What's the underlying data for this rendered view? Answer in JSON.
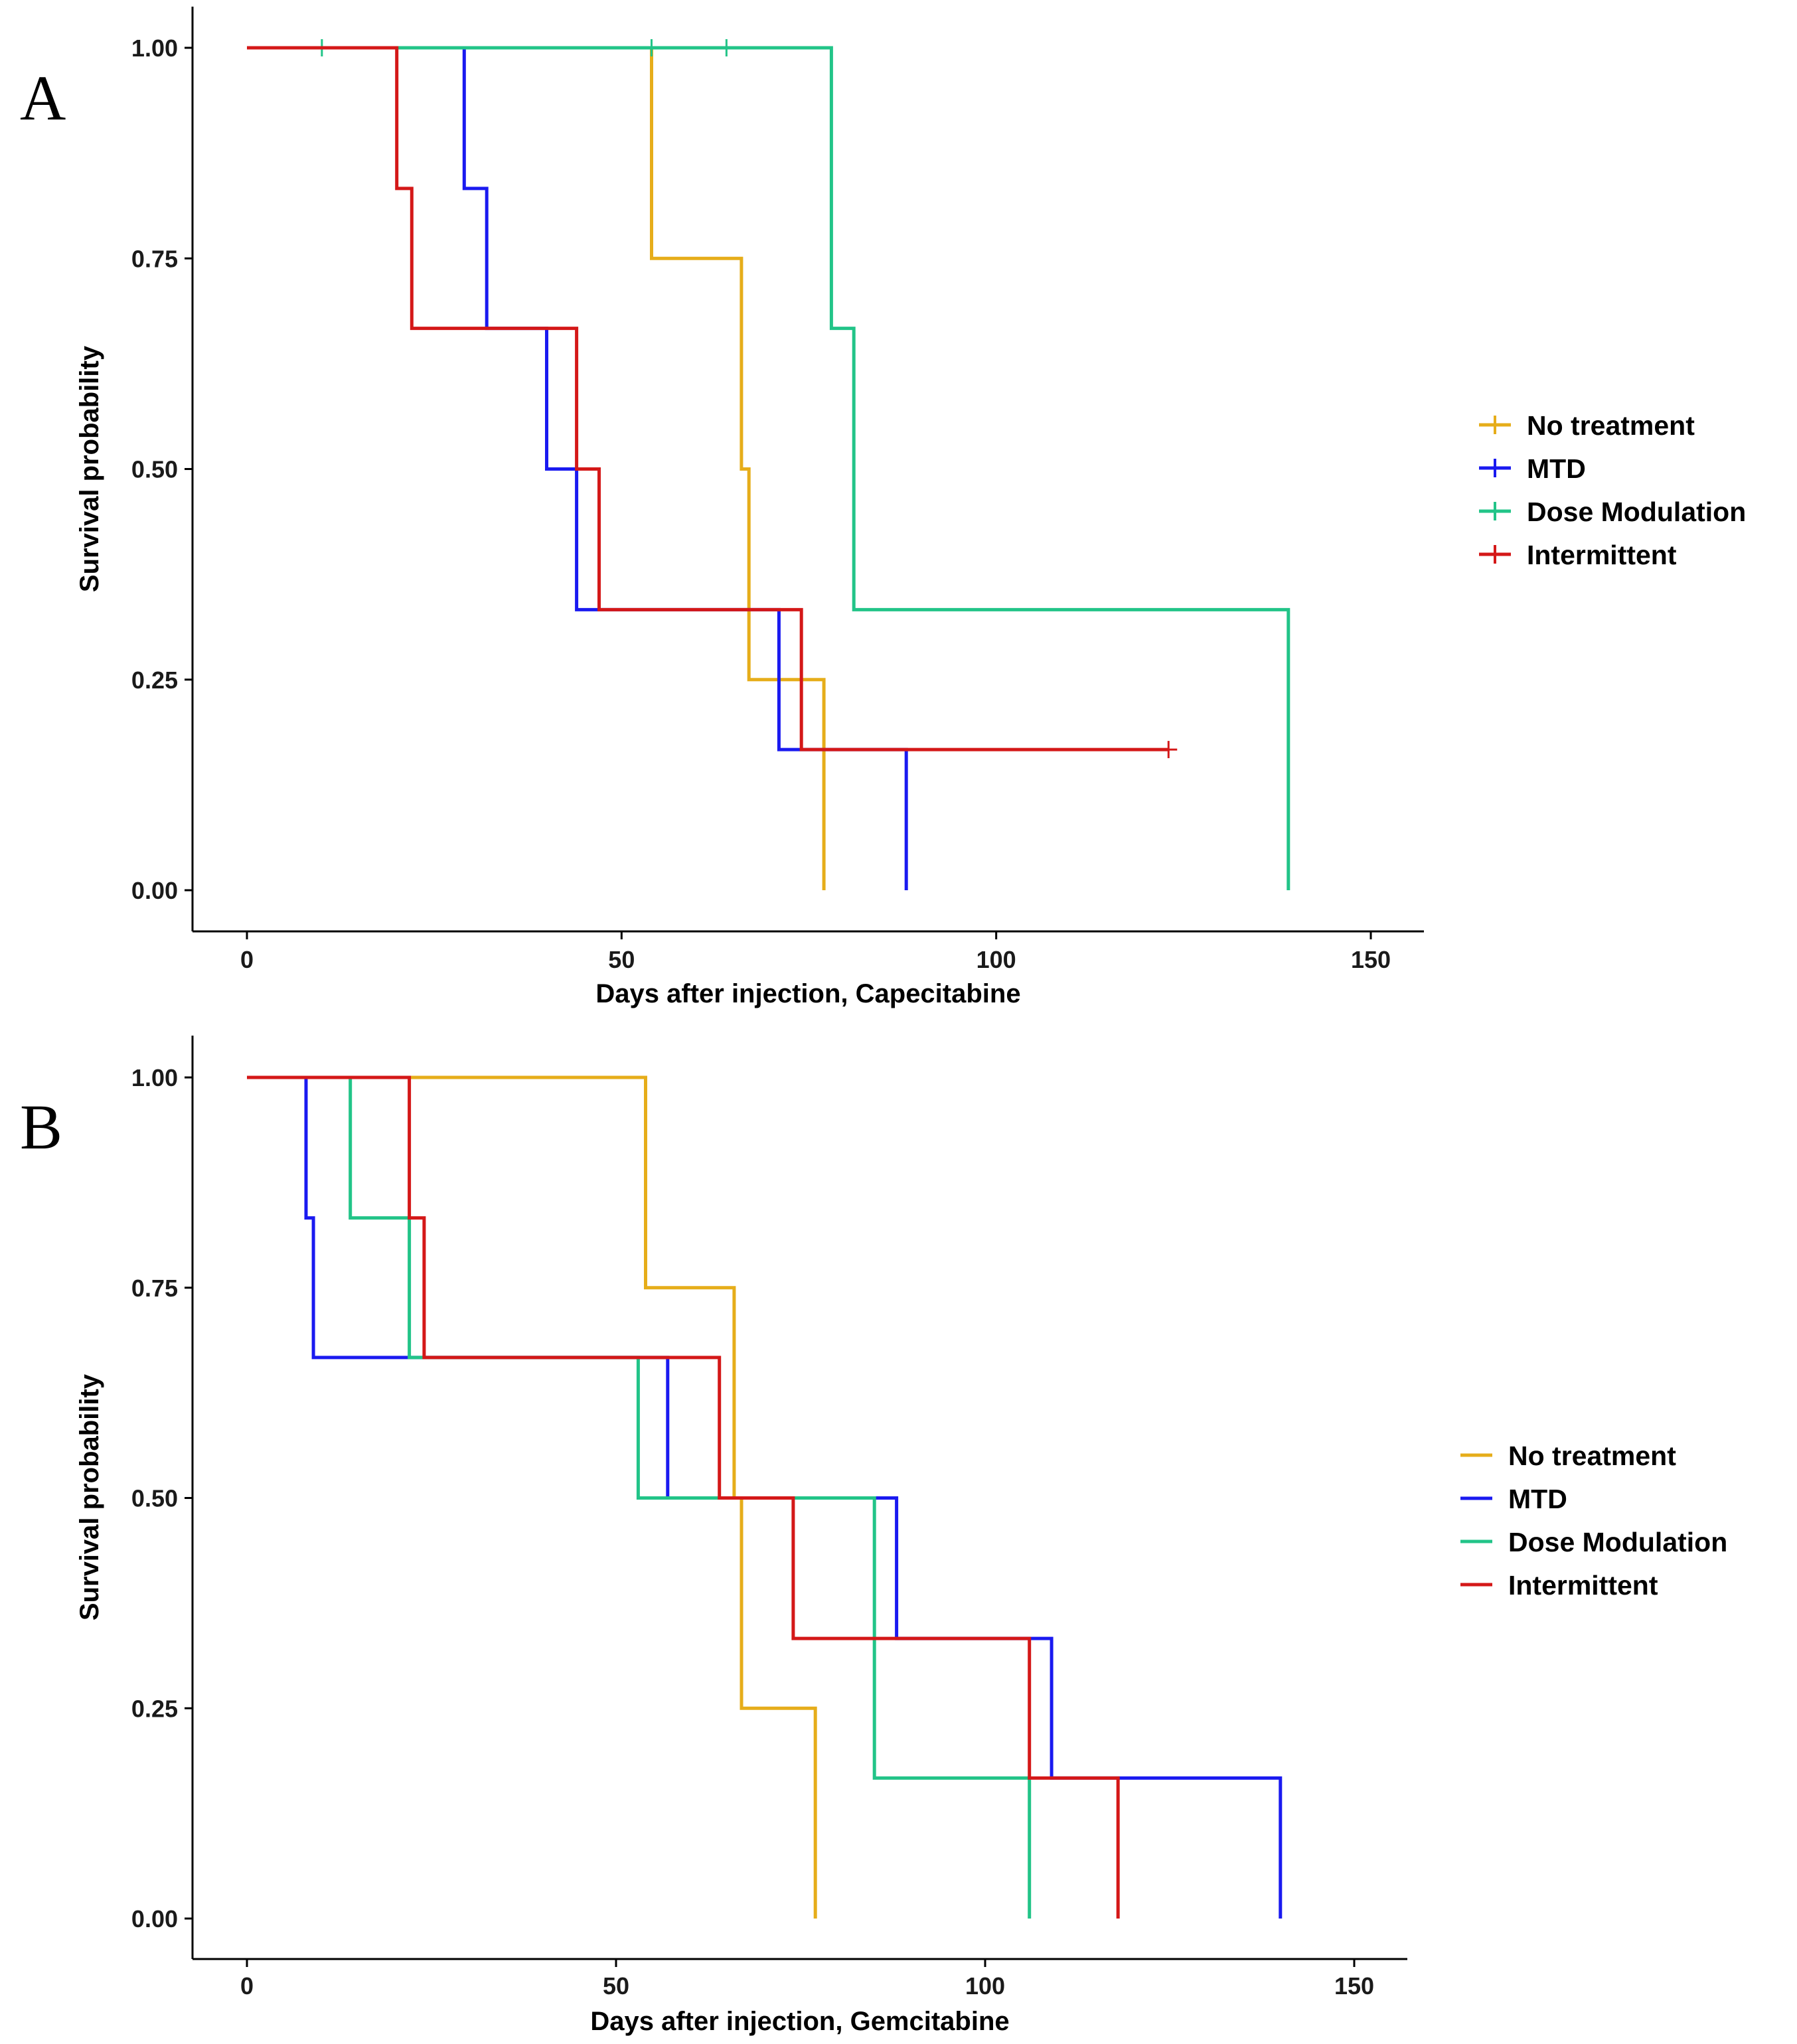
{
  "chart_data": [
    {
      "panel": "A",
      "type": "line",
      "subtype": "kaplan-meier-step",
      "xlabel": "Days after injection, Capecitabine",
      "ylabel": "Survival probability",
      "xlim": [
        -7,
        157
      ],
      "ylim": [
        -0.04,
        1.05
      ],
      "xticks": [
        0,
        50,
        100,
        150
      ],
      "xtick_labels": [
        "0",
        "50",
        "100",
        "150"
      ],
      "yticks": [
        0,
        0.25,
        0.5,
        0.75,
        1
      ],
      "ytick_labels": [
        "0.00",
        "0.25",
        "0.50",
        "0.75",
        "1.00"
      ],
      "legend_position": "right",
      "series": [
        {
          "name": "No treatment",
          "color": "#E6AD1A",
          "x": [
            0,
            54,
            54,
            66,
            66,
            67,
            67,
            77,
            77
          ],
          "y": [
            1,
            1,
            0.75,
            0.75,
            0.5,
            0.5,
            0.25,
            0.25,
            0
          ],
          "censored": []
        },
        {
          "name": "MTD",
          "color": "#1A1AF0",
          "x": [
            0,
            29,
            29,
            32,
            32,
            40,
            40,
            44,
            44,
            71,
            71,
            88,
            88
          ],
          "y": [
            1,
            1,
            0.833,
            0.833,
            0.667,
            0.667,
            0.5,
            0.5,
            0.333,
            0.333,
            0.167,
            0.167,
            0
          ],
          "censored": []
        },
        {
          "name": "Dose Modulation",
          "color": "#22C488",
          "x": [
            0,
            78,
            78,
            81,
            81,
            139,
            139
          ],
          "y": [
            1,
            1,
            0.667,
            0.667,
            0.333,
            0.333,
            0
          ],
          "censored": [
            [
              10,
              1
            ],
            [
              54,
              1
            ],
            [
              64,
              1
            ]
          ]
        },
        {
          "name": "Intermittent",
          "color": "#D41818",
          "x": [
            0,
            20,
            20,
            22,
            22,
            44,
            44,
            47,
            47,
            74,
            74,
            123
          ],
          "y": [
            1,
            1,
            0.833,
            0.833,
            0.667,
            0.667,
            0.5,
            0.5,
            0.333,
            0.333,
            0.167,
            0.167
          ],
          "censored": [
            [
              123,
              0.167
            ]
          ]
        }
      ]
    },
    {
      "panel": "B",
      "type": "line",
      "subtype": "kaplan-meier-step",
      "xlabel": "Days after injection, Gemcitabine",
      "ylabel": "Survival probability",
      "xlim": [
        -7,
        157
      ],
      "ylim": [
        -0.04,
        1.05
      ],
      "xticks": [
        0,
        50,
        100,
        150
      ],
      "xtick_labels": [
        "0",
        "50",
        "100",
        "150"
      ],
      "yticks": [
        0,
        0.25,
        0.5,
        0.75,
        1
      ],
      "ytick_labels": [
        "0.00",
        "0.25",
        "0.50",
        "0.75",
        "1.00"
      ],
      "legend_position": "right",
      "series": [
        {
          "name": "No treatment",
          "color": "#E6AD1A",
          "x": [
            0,
            54,
            54,
            66,
            66,
            67,
            67,
            77,
            77
          ],
          "y": [
            1,
            1,
            0.75,
            0.75,
            0.5,
            0.5,
            0.25,
            0.25,
            0
          ],
          "censored": []
        },
        {
          "name": "MTD",
          "color": "#1A1AF0",
          "x": [
            0,
            8,
            8,
            9,
            9,
            57,
            57,
            88,
            88,
            109,
            109,
            140,
            140
          ],
          "y": [
            1,
            1,
            0.833,
            0.833,
            0.667,
            0.667,
            0.5,
            0.5,
            0.333,
            0.333,
            0.167,
            0.167,
            0
          ],
          "censored": []
        },
        {
          "name": "Dose Modulation",
          "color": "#22C488",
          "x": [
            0,
            14,
            14,
            22,
            22,
            53,
            53,
            85,
            85,
            106,
            106
          ],
          "y": [
            1,
            1,
            0.833,
            0.833,
            0.667,
            0.667,
            0.5,
            0.5,
            0.167,
            0.167,
            0
          ],
          "censored": []
        },
        {
          "name": "Intermittent",
          "color": "#D41818",
          "x": [
            0,
            22,
            22,
            24,
            24,
            64,
            64,
            74,
            74,
            106,
            106,
            118,
            118
          ],
          "y": [
            1,
            1,
            0.833,
            0.833,
            0.667,
            0.667,
            0.5,
            0.5,
            0.333,
            0.333,
            0.167,
            0.167,
            0
          ],
          "censored": []
        }
      ]
    }
  ]
}
